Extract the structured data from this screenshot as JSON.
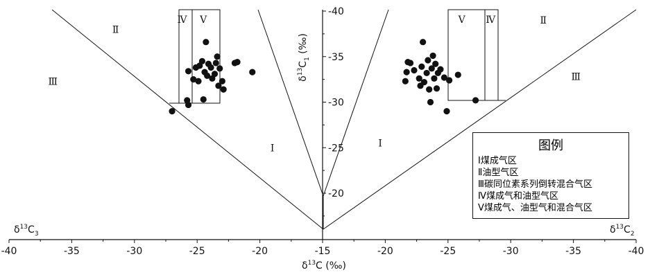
{
  "chart_data": {
    "type": "scatter",
    "x_axis": {
      "ticks": [
        -40,
        -35,
        -30,
        -25,
        -20,
        -15,
        -20,
        -25,
        -30,
        -35,
        -40
      ],
      "label_prefix": "δ",
      "label_sup": "13",
      "label_suffix": "C (‰)"
    },
    "y_axis": {
      "ticks": [
        -40,
        -35,
        -30,
        -25,
        -20
      ],
      "label_prefix": "δ",
      "label_sup": "13",
      "label_mid": "C",
      "label_sub": "1",
      "label_suffix": " (‰)"
    },
    "corner_labels": {
      "left": {
        "prefix": "δ",
        "sup": "13",
        "mid": "C",
        "sub": "3"
      },
      "right": {
        "prefix": "δ",
        "sup": "13",
        "mid": "C",
        "sub": "2"
      }
    },
    "zone_labels": [
      {
        "text": "Ⅰ",
        "panel": "left",
        "x": -19,
        "y": -25
      },
      {
        "text": "Ⅱ",
        "panel": "left",
        "x": -31.5,
        "y": -38
      },
      {
        "text": "Ⅲ",
        "panel": "left",
        "x": -36.5,
        "y": -32.3
      },
      {
        "text": "Ⅳ",
        "panel": "left",
        "x": -26.2,
        "y": -39.1
      },
      {
        "text": "Ⅴ",
        "panel": "left",
        "x": -24.5,
        "y": -39.1
      },
      {
        "text": "Ⅰ",
        "panel": "right",
        "x": -19.6,
        "y": -25.5
      },
      {
        "text": "Ⅱ",
        "panel": "right",
        "x": -32.6,
        "y": -39
      },
      {
        "text": "Ⅲ",
        "panel": "right",
        "x": -35.2,
        "y": -32.8
      },
      {
        "text": "Ⅴ",
        "panel": "right",
        "x": -26.1,
        "y": -39.1
      },
      {
        "text": "Ⅳ",
        "panel": "right",
        "x": -28.4,
        "y": -39.1
      }
    ],
    "series": [
      {
        "panel": "left",
        "points": [
          [
            -27.0,
            -29.0
          ],
          [
            -25.8,
            -30.2
          ],
          [
            -25.7,
            -29.7
          ],
          [
            -25.7,
            -33.4
          ],
          [
            -25.3,
            -32.5
          ],
          [
            -25.1,
            -33.8
          ],
          [
            -24.9,
            -32.3
          ],
          [
            -24.8,
            -34.0
          ],
          [
            -24.6,
            -34.5
          ],
          [
            -24.5,
            -30.3
          ],
          [
            -24.4,
            -33.3
          ],
          [
            -24.3,
            -36.6
          ],
          [
            -24.2,
            -32.9
          ],
          [
            -24.1,
            -34.2
          ],
          [
            -23.9,
            -33.8
          ],
          [
            -23.8,
            -32.6
          ],
          [
            -23.6,
            -33.1
          ],
          [
            -23.5,
            -34.3
          ],
          [
            -23.4,
            -35.0
          ],
          [
            -23.3,
            -31.8
          ],
          [
            -23.2,
            -33.7
          ],
          [
            -23.0,
            -32.3
          ],
          [
            -22.9,
            -31.4
          ],
          [
            -22.0,
            -34.3
          ],
          [
            -21.8,
            -34.4
          ],
          [
            -20.6,
            -33.3
          ]
        ]
      },
      {
        "panel": "right",
        "points": [
          [
            -21.6,
            -32.3
          ],
          [
            -21.7,
            -33.3
          ],
          [
            -21.8,
            -34.4
          ],
          [
            -22.0,
            -34.3
          ],
          [
            -22.3,
            -33.5
          ],
          [
            -22.7,
            -32.6
          ],
          [
            -22.8,
            -31.8
          ],
          [
            -22.9,
            -33.9
          ],
          [
            -23.0,
            -36.6
          ],
          [
            -23.1,
            -32.2
          ],
          [
            -23.3,
            -33.2
          ],
          [
            -23.4,
            -34.6
          ],
          [
            -23.5,
            -31.4
          ],
          [
            -23.6,
            -30.0
          ],
          [
            -23.7,
            -33.7
          ],
          [
            -23.8,
            -35.1
          ],
          [
            -23.9,
            -32.6
          ],
          [
            -24.0,
            -34.2
          ],
          [
            -24.1,
            -31.5
          ],
          [
            -24.2,
            -33.2
          ],
          [
            -24.4,
            -33.6
          ],
          [
            -24.7,
            -32.7
          ],
          [
            -24.9,
            -29.0
          ],
          [
            -25.1,
            -32.4
          ],
          [
            -25.8,
            -33.0
          ],
          [
            -27.2,
            -30.2
          ]
        ]
      }
    ]
  },
  "legend": {
    "title": "图例",
    "items": [
      "Ⅰ煤成气区",
      "Ⅱ油型气区",
      "Ⅲ碳同位素系列倒转混合气区",
      "Ⅳ煤成气和油型气区",
      "Ⅴ煤成气、油型气和混合气区"
    ]
  },
  "colors": {
    "axis": "#111111",
    "marker": "#111111",
    "background": "#ffffff"
  }
}
